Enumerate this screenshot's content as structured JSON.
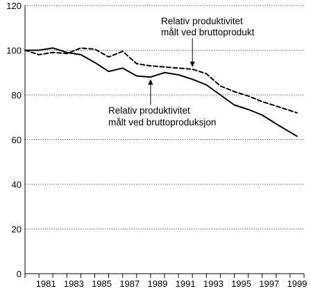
{
  "chart_data": {
    "type": "line",
    "title": "",
    "xlabel": "",
    "ylabel": "",
    "ylim": [
      0,
      120
    ],
    "y_ticks": [
      0,
      20,
      40,
      60,
      80,
      100,
      120
    ],
    "x_range": [
      1980,
      2000
    ],
    "x_tick_labels": [
      "1981",
      "1983",
      "1985",
      "1987",
      "1989",
      "1991",
      "1993",
      "1995",
      "1997",
      "1999"
    ],
    "grid": "horizontal dotted",
    "series": [
      {
        "style": "solid",
        "color": "#000000",
        "x": [
          1980,
          1981,
          1982,
          1983,
          1984,
          1985,
          1986,
          1987,
          1988,
          1989,
          1990,
          1991,
          1992,
          1993,
          1994,
          1995,
          1996,
          1997,
          1998,
          1999.5
        ],
        "y": [
          100,
          100,
          101,
          99,
          98,
          94.5,
          90.5,
          92,
          88.5,
          88,
          90,
          89,
          87,
          84.5,
          80,
          75.5,
          73.5,
          71,
          67,
          61.5
        ]
      },
      {
        "style": "dashed",
        "color": "#000000",
        "x": [
          1980,
          1981,
          1982,
          1983,
          1984,
          1985,
          1986,
          1987,
          1988,
          1989,
          1990,
          1991,
          1992,
          1993,
          1994,
          1995,
          1996,
          1997,
          1998,
          1999.5
        ],
        "y": [
          100,
          98,
          99,
          98.5,
          101,
          100.5,
          97,
          99.5,
          94,
          93,
          92.5,
          92,
          91.5,
          89.5,
          84,
          81.5,
          79.5,
          77,
          75,
          72
        ]
      }
    ],
    "annotations": [
      {
        "target": "dashed",
        "lines": [
          "Relativ produktivitet",
          "målt ved bruttoprodukt"
        ],
        "arrow_to": [
          1992,
          91.5
        ]
      },
      {
        "target": "solid",
        "lines": [
          "Relativ produktivitet",
          "målt ved bruttoproduksjon"
        ],
        "arrow_to": [
          1989,
          88
        ]
      }
    ]
  }
}
